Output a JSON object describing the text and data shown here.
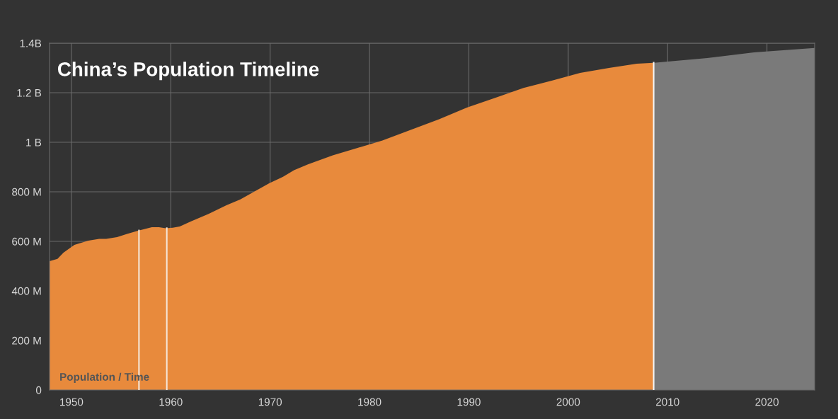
{
  "chart_data": {
    "type": "area",
    "title": "China’s Population Timeline",
    "annotations": [
      "Population / Time"
    ],
    "xlim": [
      1947.8,
      2024.8
    ],
    "xticks": [
      1950,
      1960,
      1970,
      1980,
      1990,
      2000,
      2010,
      2020
    ],
    "ylim": [
      0,
      1400000000
    ],
    "yticks": [
      0,
      {
        "value": 200000000,
        "label": "200 M"
      },
      {
        "value": 400000000,
        "label": "400 M"
      },
      {
        "value": 600000000,
        "label": "600 M"
      },
      {
        "value": 800000000,
        "label": "800 M"
      },
      {
        "value": 1000000000,
        "label": "1 B"
      },
      {
        "value": 1200000000,
        "label": "1.2 B"
      },
      {
        "value": 1400000000,
        "label": "1.4B"
      }
    ],
    "grid": true,
    "series": [
      {
        "color": "#e88a3c",
        "x": [
          1947.8,
          1948.6,
          1949.2,
          1950.3,
          1951.7,
          1952.8,
          1953.5,
          1954.6,
          1955.6,
          1956.7,
          1958.1,
          1958.8,
          1959.5,
          1960.2,
          1960.9,
          1962.0,
          1963.8,
          1965.6,
          1967.0,
          1968.4,
          1969.9,
          1971.3,
          1972.4,
          1973.8,
          1976.3,
          1978.8,
          1981.3,
          1984.1,
          1987.0,
          1989.8,
          1992.7,
          1995.5,
          1998.4,
          2001.2,
          2004.1,
          2006.9,
          2008.6
        ],
        "values": [
          520000000,
          529000000,
          554000000,
          586000000,
          603000000,
          610000000,
          610000000,
          617000000,
          630000000,
          643000000,
          657000000,
          657000000,
          653000000,
          655000000,
          660000000,
          680000000,
          711000000,
          746000000,
          769000000,
          801000000,
          834000000,
          861000000,
          887000000,
          911000000,
          947000000,
          977000000,
          1007000000,
          1049000000,
          1093000000,
          1140000000,
          1180000000,
          1219000000,
          1249000000,
          1280000000,
          1300000000,
          1317000000,
          1321000000
        ]
      },
      {
        "color": "#7a7a7a",
        "x": [
          2008.6,
          2014.0,
          2018.7,
          2024.8
        ],
        "values": [
          1321000000,
          1340000000,
          1363000000,
          1381000000
        ]
      }
    ],
    "ref_lines": [
      {
        "axis": "x",
        "value": 1956.8,
        "color": "#f5e6d8"
      },
      {
        "axis": "x",
        "value": 1959.6,
        "color": "#f5e6d8"
      },
      {
        "axis": "x",
        "value": 2008.6,
        "color": "#f5f5f5"
      }
    ]
  }
}
